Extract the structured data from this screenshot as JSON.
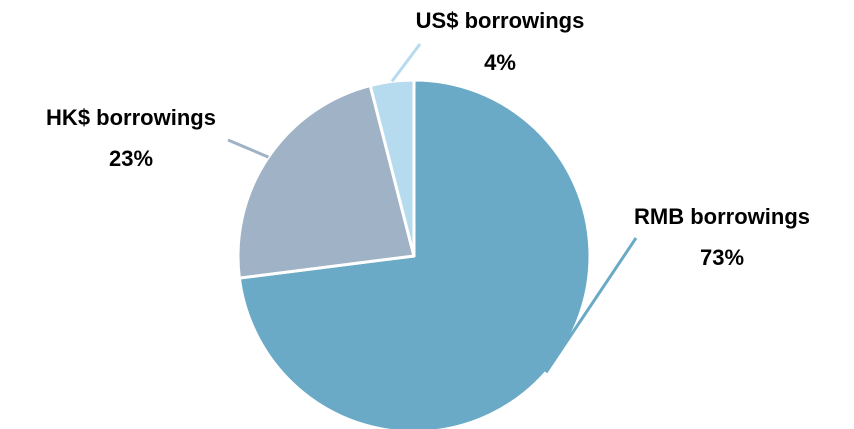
{
  "chart_data": {
    "type": "pie",
    "title": "",
    "start_angle_deg": 90,
    "direction": "clockwise",
    "slices": [
      {
        "name": "RMB borrowings",
        "value": 73,
        "percent_label": "73%",
        "color": "#6aaac6",
        "leader_color": "#6aaac6"
      },
      {
        "name": "HK$ borrowings",
        "value": 23,
        "percent_label": "23%",
        "color": "#a0b2c5",
        "leader_color": "#a0b2c5"
      },
      {
        "name": "US$ borrowings",
        "value": 4,
        "percent_label": "4%",
        "color": "#b7dbee",
        "leader_color": "#b7dbee"
      }
    ],
    "legend": "none",
    "slice_border_color": "#ffffff"
  }
}
